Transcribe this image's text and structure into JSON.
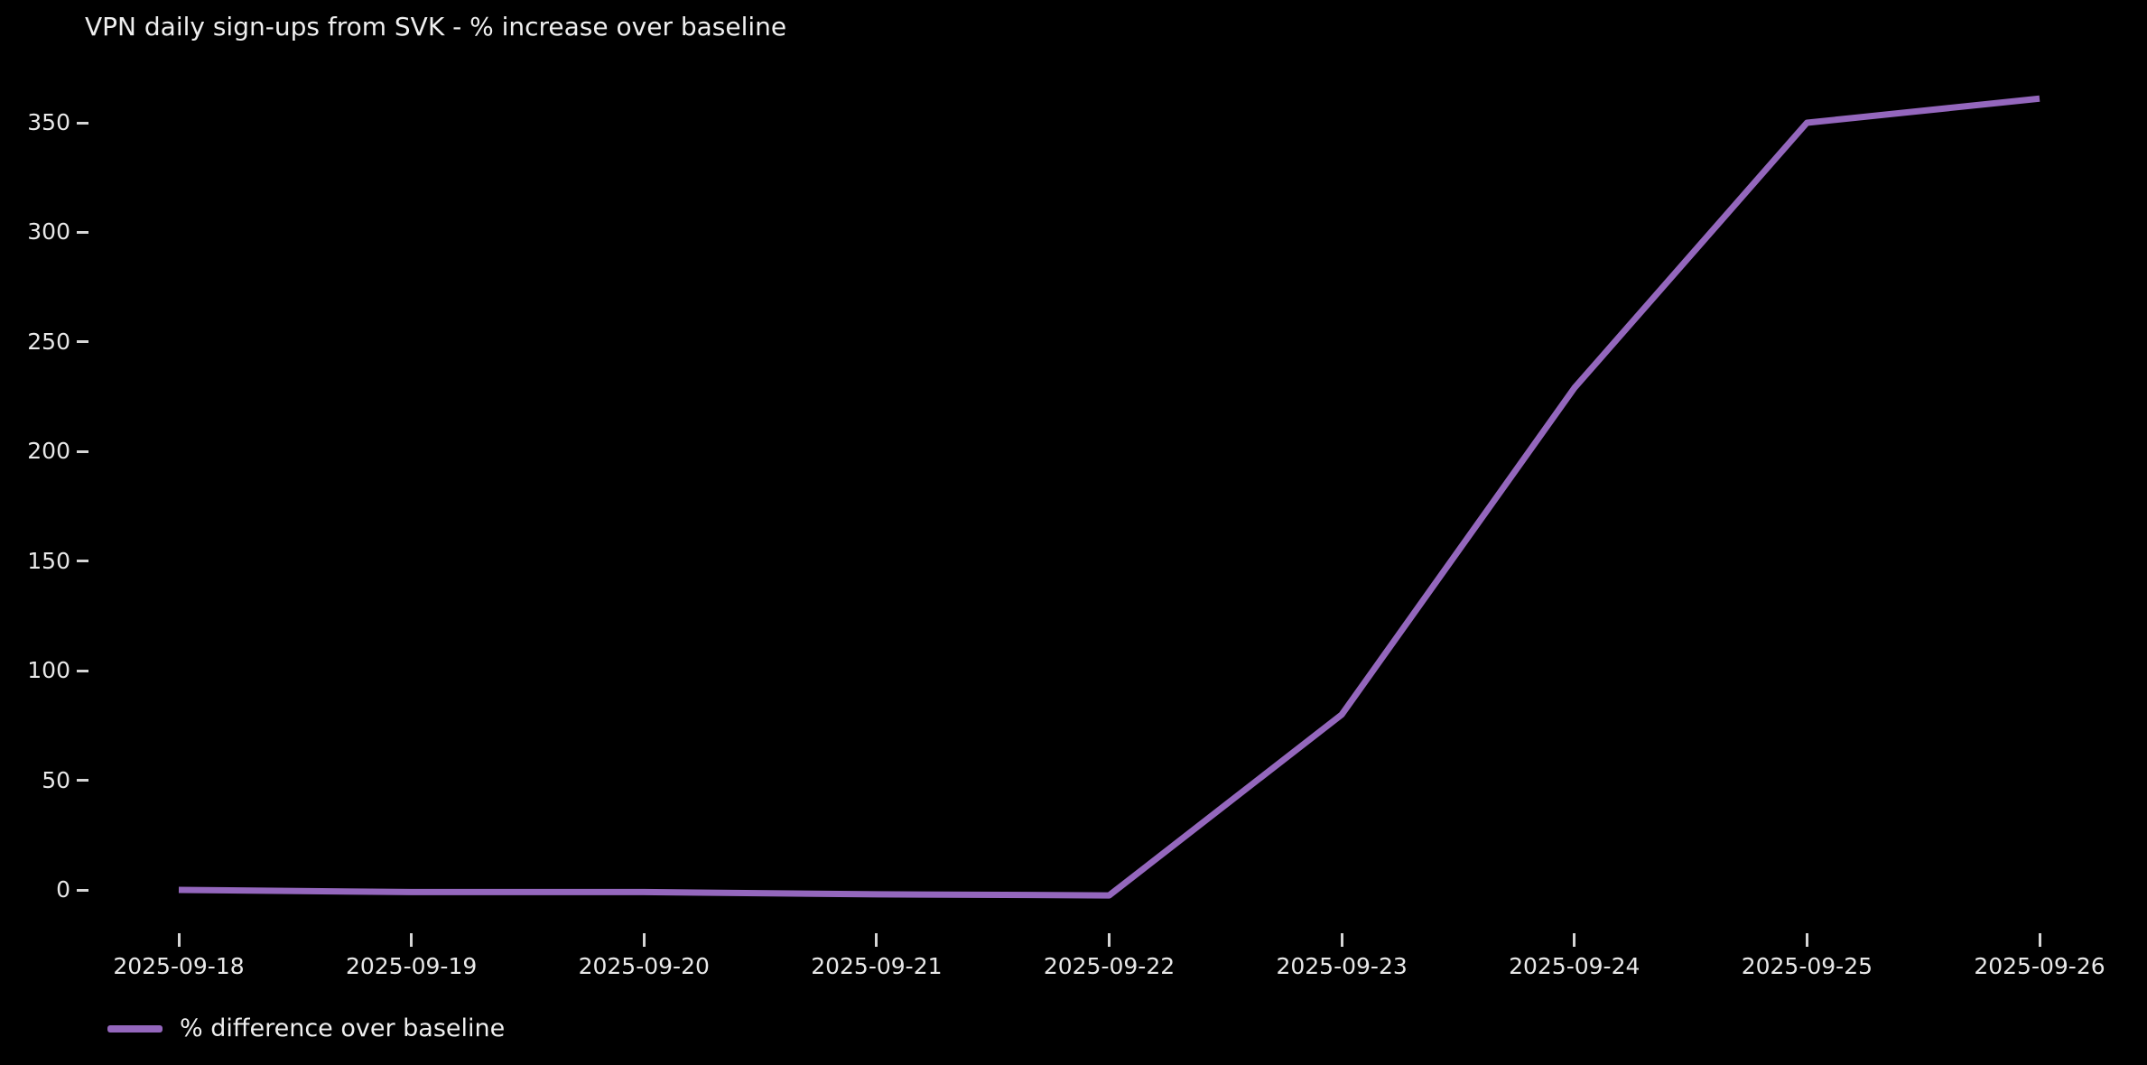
{
  "page": {
    "background_color": "#000000",
    "text_color": "#e8e8e8"
  },
  "chart_data": {
    "type": "line",
    "title": "VPN daily sign-ups from SVK - % increase over baseline",
    "x": [
      "2025-09-18",
      "2025-09-19",
      "2025-09-20",
      "2025-09-21",
      "2025-09-22",
      "2025-09-23",
      "2025-09-24",
      "2025-09-25",
      "2025-09-26"
    ],
    "series": [
      {
        "name": "% difference over baseline",
        "color": "#9467bd",
        "values": [
          0,
          -1,
          -1,
          -2,
          -2.5,
          80,
          229,
          350,
          361
        ]
      }
    ],
    "yticks": [
      0,
      50,
      100,
      150,
      200,
      250,
      300,
      350
    ],
    "ylim": [
      -20,
      380
    ],
    "xlabel": "",
    "ylabel": "",
    "grid": false,
    "legend_position": "lower-left"
  },
  "legend": {
    "label": "% difference over baseline",
    "swatch_color": "#9467bd"
  }
}
